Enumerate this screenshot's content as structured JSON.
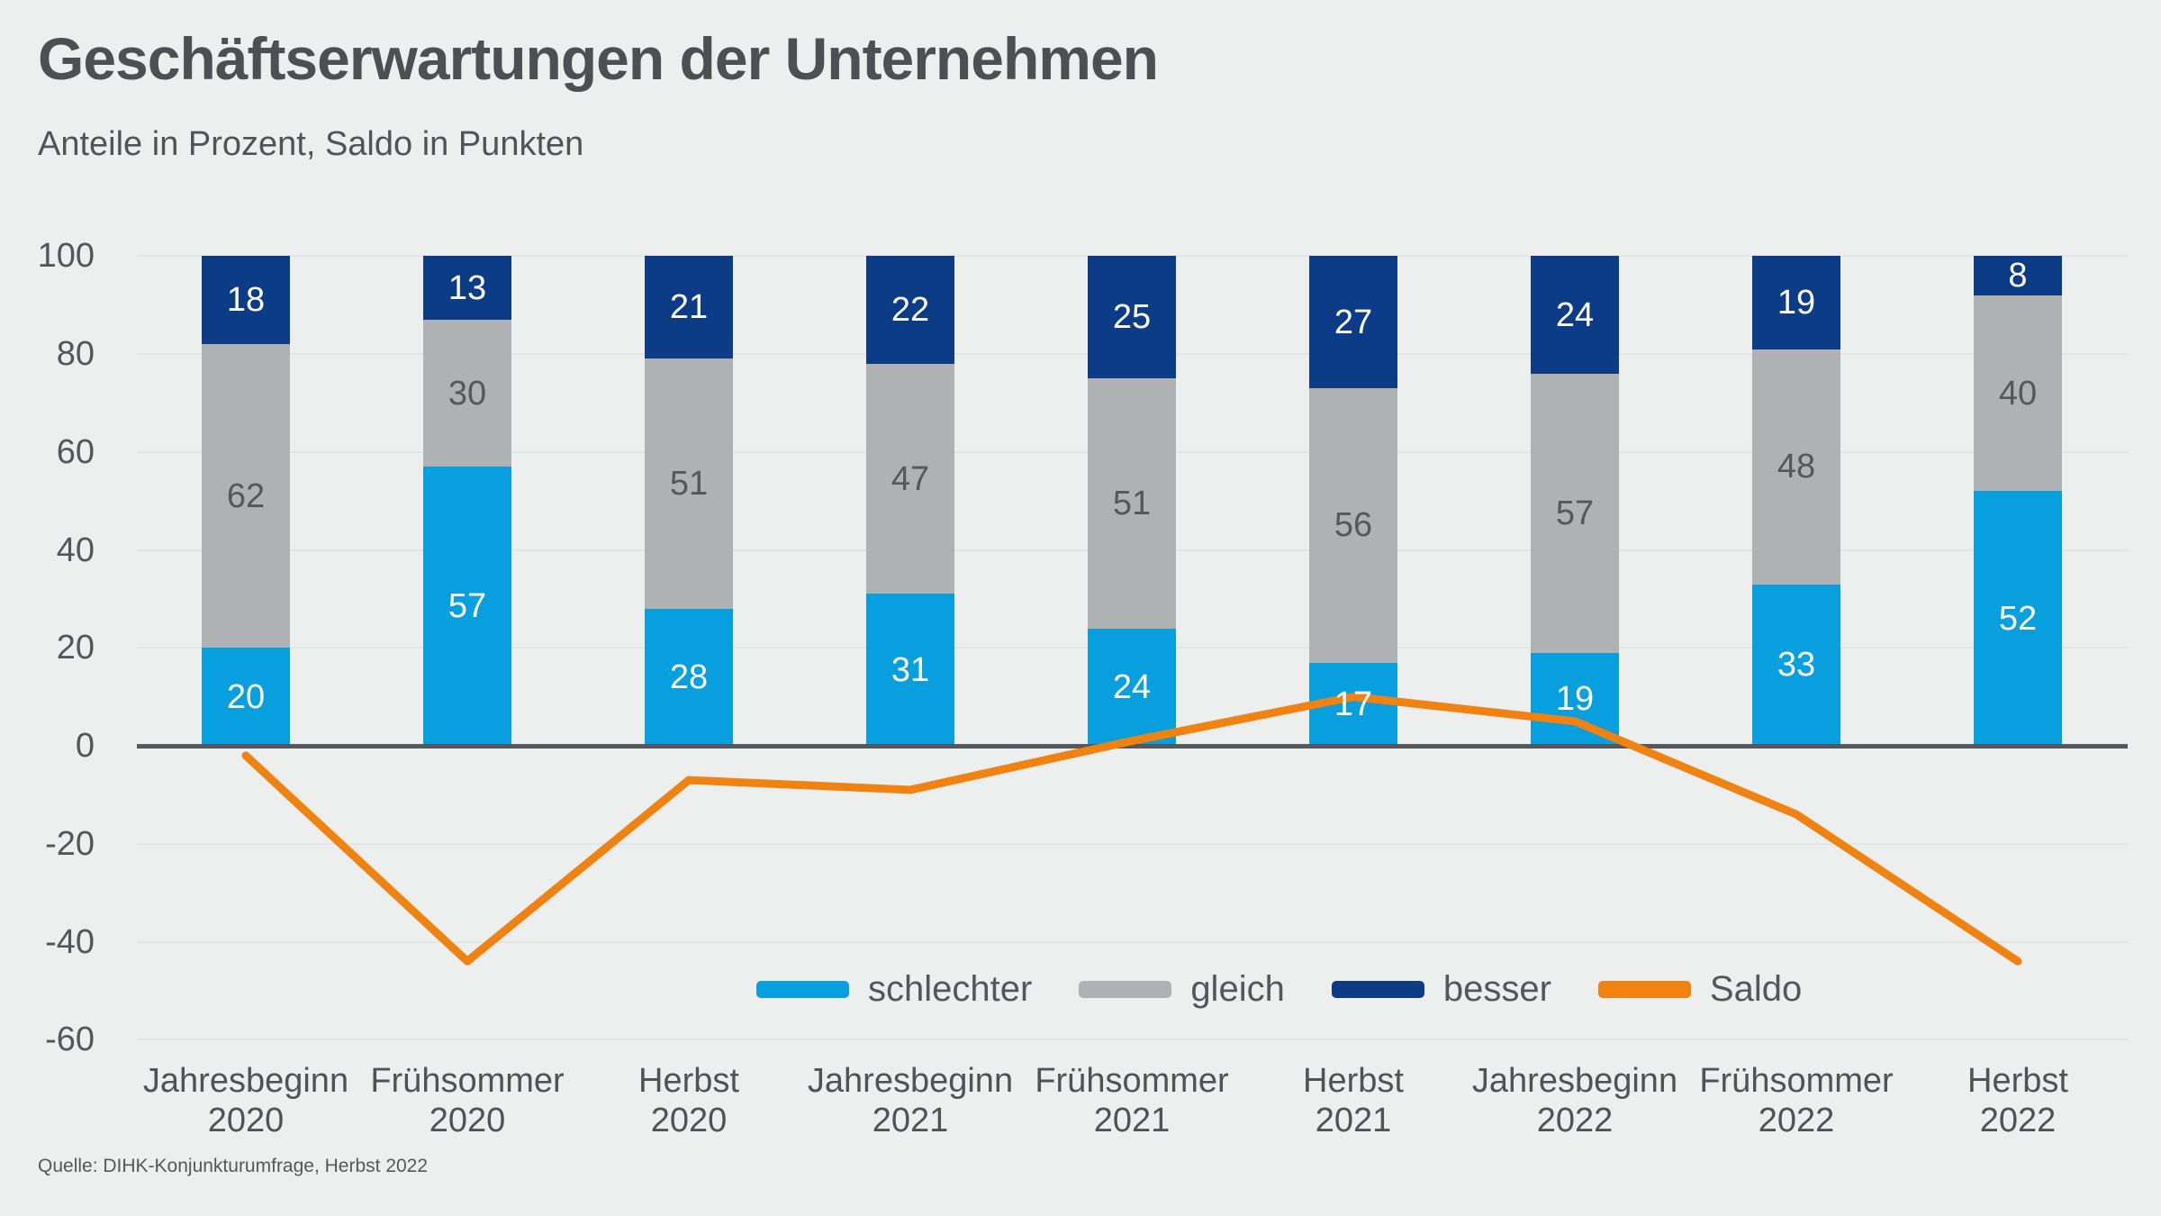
{
  "header": {
    "title": "Geschäftserwartungen der Unternehmen",
    "subtitle": "Anteile in Prozent, Saldo in Punkten"
  },
  "source": "Quelle: DIHK-Konjunkturumfrage, Herbst 2022",
  "colors": {
    "background": "#edefef",
    "schlechter": "#089fdf",
    "gleich": "#b0b1b3",
    "besser": "#0d3c86",
    "saldo": "#ef8211",
    "grid": "#e2e4e5",
    "zero_line": "#54575b",
    "tick_text": "#54575a",
    "label_on_gray": "#55585a",
    "label_on_color": "#ffffff"
  },
  "chart_data": {
    "type": "bar",
    "stacked": true,
    "title": "Geschäftserwartungen der Unternehmen",
    "subtitle": "Anteile in Prozent, Saldo in Punkten",
    "categories": [
      [
        "Jahresbeginn",
        "2020"
      ],
      [
        "Frühsommer",
        "2020"
      ],
      [
        "Herbst",
        "2020"
      ],
      [
        "Jahresbeginn",
        "2021"
      ],
      [
        "Frühsommer",
        "2021"
      ],
      [
        "Herbst",
        "2021"
      ],
      [
        "Jahresbeginn",
        "2022"
      ],
      [
        "Frühsommer",
        "2022"
      ],
      [
        "Herbst",
        "2022"
      ]
    ],
    "series": [
      {
        "name": "schlechter",
        "color_key": "schlechter",
        "values": [
          20,
          57,
          28,
          31,
          24,
          17,
          19,
          33,
          52
        ]
      },
      {
        "name": "gleich",
        "color_key": "gleich",
        "values": [
          62,
          30,
          51,
          47,
          51,
          56,
          57,
          48,
          40
        ]
      },
      {
        "name": "besser",
        "color_key": "besser",
        "values": [
          18,
          13,
          21,
          22,
          25,
          27,
          24,
          19,
          8
        ]
      }
    ],
    "line_series": {
      "name": "Saldo",
      "color_key": "saldo",
      "values": [
        -2,
        -44,
        -7,
        -9,
        1,
        10,
        5,
        -14,
        -44
      ]
    },
    "yticks": [
      100,
      80,
      60,
      40,
      20,
      0,
      -20,
      -40,
      -60
    ],
    "ylim": [
      -60,
      100
    ],
    "grid": true,
    "legend_position": "bottom-inside"
  },
  "legend": {
    "items": [
      {
        "label": "schlechter",
        "color_key": "schlechter"
      },
      {
        "label": "gleich",
        "color_key": "gleich"
      },
      {
        "label": "besser",
        "color_key": "besser"
      },
      {
        "label": "Saldo",
        "color_key": "saldo"
      }
    ]
  }
}
